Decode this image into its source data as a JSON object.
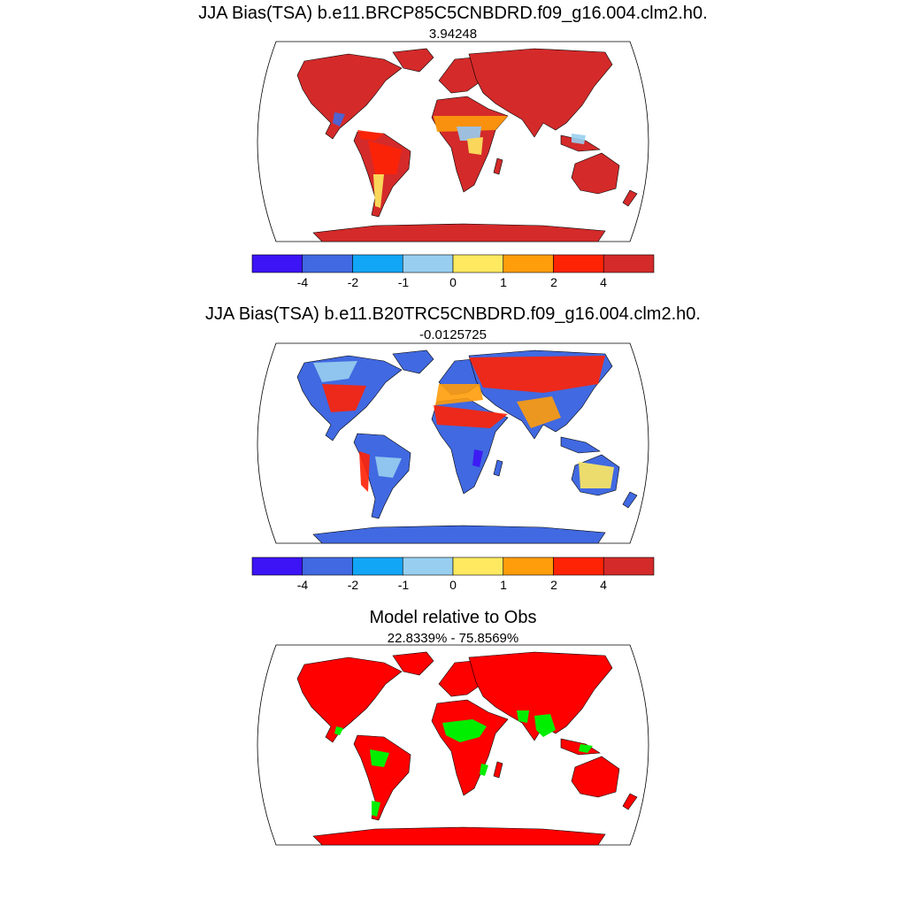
{
  "panels": [
    {
      "title": "JJA Bias(TSA) b.e11.BRCP85C5CNBDRD.f09_g16.004.clm2.h0.",
      "subtitle": "3.94248"
    },
    {
      "title": "JJA Bias(TSA) b.e11.B20TRC5CNBDRD.f09_g16.004.clm2.h0.",
      "subtitle": "-0.0125725"
    },
    {
      "title": "Model relative to Obs",
      "subtitle": "22.8339% - 75.8569%"
    }
  ],
  "colorbar": {
    "colors": [
      "#3c14f5",
      "#4169e1",
      "#12a6f6",
      "#98cff0",
      "#ffe960",
      "#ff9d0b",
      "#ff2305",
      "#d42a2a"
    ],
    "labels": [
      "-4",
      "-2",
      "-1",
      "0",
      "1",
      "2",
      "4"
    ]
  },
  "relative_map_colors": {
    "model_worse": "#ff0000",
    "model_better": "#00ee00"
  }
}
